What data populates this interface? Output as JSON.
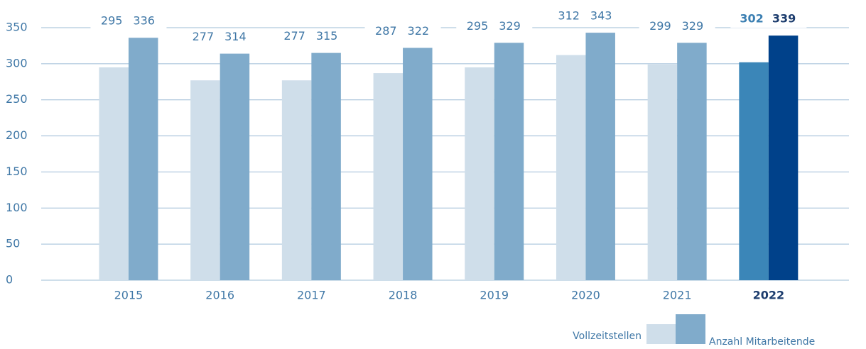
{
  "chart_data": {
    "type": "bar",
    "categories": [
      "2015",
      "2016",
      "2017",
      "2018",
      "2019",
      "2020",
      "2021",
      "2022"
    ],
    "emphasis": [
      false,
      false,
      false,
      false,
      false,
      false,
      false,
      true
    ],
    "series": [
      {
        "name": "Vollzeitstellen",
        "color": "#cfdeea",
        "colors": [
          "#cfdeea",
          "#cfdeea",
          "#cfdeea",
          "#cfdeea",
          "#cfdeea",
          "#cfdeea",
          "#cfdeea",
          "#3b86b8"
        ],
        "values": [
          295,
          277,
          277,
          287,
          295,
          312,
          299,
          302
        ]
      },
      {
        "name": "Anzahl Mitarbeitende",
        "color": "#80abcb",
        "colors": [
          "#80abcb",
          "#80abcb",
          "#80abcb",
          "#80abcb",
          "#80abcb",
          "#80abcb",
          "#80abcb",
          "#00418a"
        ],
        "values": [
          336,
          314,
          315,
          322,
          329,
          343,
          329,
          339
        ]
      }
    ],
    "ylim": [
      0,
      350
    ],
    "yticks": [
      0,
      50,
      100,
      150,
      200,
      250,
      300,
      350
    ],
    "grid": true,
    "legend": "bottom-right"
  }
}
